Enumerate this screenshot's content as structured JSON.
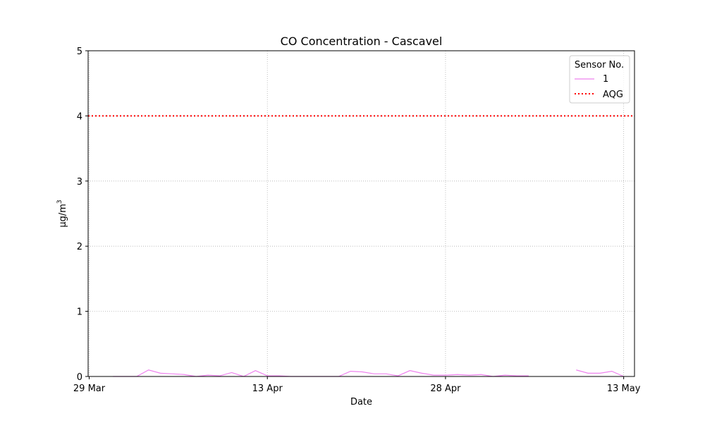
{
  "chart_data": {
    "type": "line",
    "title": "CO Concentration - Cascavel",
    "xlabel": "Date",
    "ylabel": "μg/m",
    "ylabel_superscript": "3",
    "x_axis_type": "date",
    "xlim": [
      "2024-03-29",
      "2024-05-14"
    ],
    "ylim": [
      0,
      5
    ],
    "x_ticks": [
      {
        "date": "2024-03-29",
        "label": "29 Mar"
      },
      {
        "date": "2024-04-13",
        "label": "13 Apr"
      },
      {
        "date": "2024-04-28",
        "label": "28 Apr"
      },
      {
        "date": "2024-05-13",
        "label": "13 May"
      }
    ],
    "y_ticks": [
      0,
      1,
      2,
      3,
      4,
      5
    ],
    "grid": true,
    "legend": {
      "title": "Sensor No.",
      "placement": "top-right"
    },
    "series": [
      {
        "name": "1",
        "color": "#ee82ee",
        "style": "solid",
        "points": [
          [
            "2024-03-31",
            0.0
          ],
          [
            "2024-04-01",
            0.0
          ],
          [
            "2024-04-02",
            0.0
          ],
          [
            "2024-04-03",
            0.1
          ],
          [
            "2024-04-04",
            0.05
          ],
          [
            "2024-04-05",
            0.04
          ],
          [
            "2024-04-06",
            0.03
          ],
          [
            "2024-04-07",
            0.0
          ],
          [
            "2024-04-08",
            0.02
          ],
          [
            "2024-04-09",
            0.01
          ],
          [
            "2024-04-10",
            0.06
          ],
          [
            "2024-04-11",
            0.0
          ],
          [
            "2024-04-12",
            0.09
          ],
          [
            "2024-04-13",
            0.01
          ],
          [
            "2024-04-14",
            0.01
          ],
          [
            "2024-04-15",
            0.0
          ],
          [
            "2024-04-16",
            0.0
          ],
          [
            "2024-04-17",
            0.0
          ],
          [
            "2024-04-18",
            0.0
          ],
          [
            "2024-04-19",
            0.0
          ],
          [
            "2024-04-20",
            0.08
          ],
          [
            "2024-04-21",
            0.07
          ],
          [
            "2024-04-22",
            0.04
          ],
          [
            "2024-04-23",
            0.04
          ],
          [
            "2024-04-24",
            0.01
          ],
          [
            "2024-04-25",
            0.09
          ],
          [
            "2024-04-26",
            0.05
          ],
          [
            "2024-04-27",
            0.02
          ],
          [
            "2024-04-28",
            0.02
          ],
          [
            "2024-04-29",
            0.03
          ],
          [
            "2024-04-30",
            0.02
          ],
          [
            "2024-05-01",
            0.03
          ],
          [
            "2024-05-02",
            0.0
          ],
          [
            "2024-05-03",
            0.02
          ],
          [
            "2024-05-04",
            0.01
          ],
          [
            "2024-05-05",
            0.01
          ],
          null,
          [
            "2024-05-09",
            0.1
          ],
          [
            "2024-05-10",
            0.05
          ],
          [
            "2024-05-11",
            0.05
          ],
          [
            "2024-05-12",
            0.08
          ],
          [
            "2024-05-13",
            0.0
          ]
        ]
      },
      {
        "name": "AQG",
        "color": "#ff0000",
        "style": "dotted",
        "constant": 4
      }
    ]
  }
}
